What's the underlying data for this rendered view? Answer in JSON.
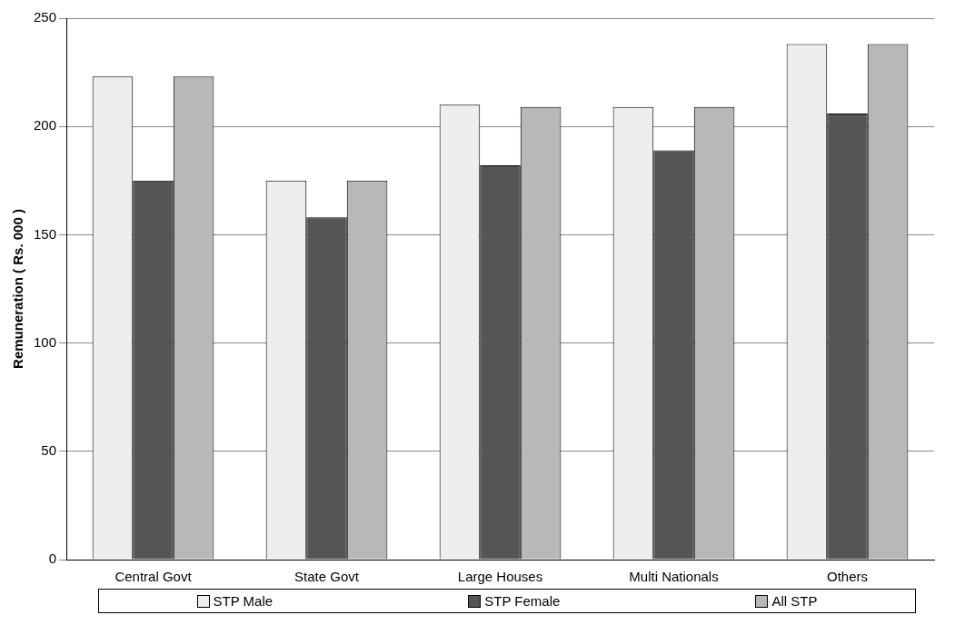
{
  "chart_data": {
    "type": "bar",
    "ylabel": "Remuneration ( Rs. 000 )",
    "categories": [
      "Central Govt",
      "State Govt",
      "Large Houses",
      "Multi Nationals",
      "Others"
    ],
    "series": [
      {
        "name": "STP Male",
        "color": "#eeeeee",
        "values": [
          223,
          175,
          210,
          209,
          238
        ]
      },
      {
        "name": "STP Female",
        "color": "#555555",
        "values": [
          175,
          158,
          182,
          189,
          206
        ]
      },
      {
        "name": "All STP",
        "color": "#b8b8b8",
        "values": [
          223,
          175,
          209,
          209,
          238
        ]
      }
    ],
    "ylim": [
      0,
      250
    ],
    "yticks": [
      0,
      50,
      100,
      150,
      200,
      250
    ],
    "grid": "y",
    "legend": "bottom"
  }
}
